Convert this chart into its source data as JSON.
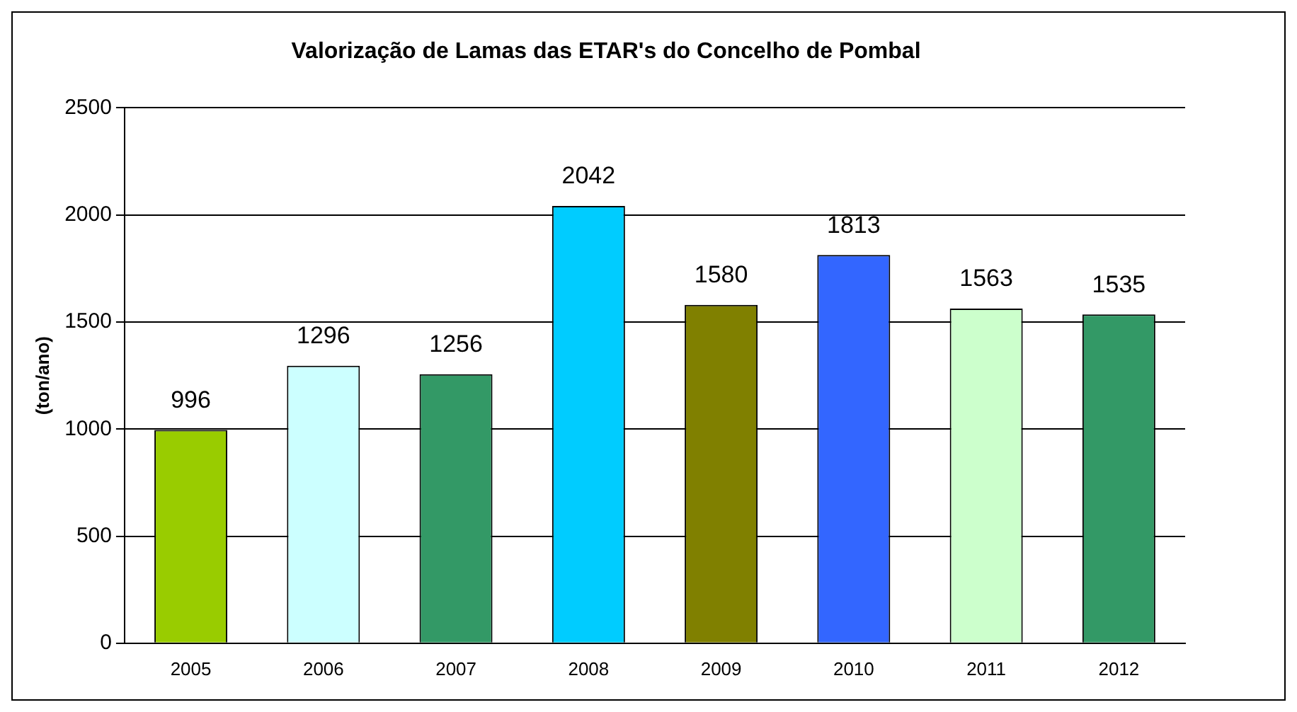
{
  "chart_data": {
    "type": "bar",
    "title": "Valorização de Lamas das ETAR's do Concelho de Pombal",
    "ylabel": "(ton/ano)",
    "categories": [
      "2005",
      "2006",
      "2007",
      "2008",
      "2009",
      "2010",
      "2011",
      "2012"
    ],
    "values": [
      996,
      1296,
      1256,
      2042,
      1580,
      1813,
      1563,
      1535
    ],
    "colors": [
      "#99cc00",
      "#ccffff",
      "#339966",
      "#00ccff",
      "#808000",
      "#3366ff",
      "#ccffcc",
      "#339966"
    ],
    "ylim": [
      0,
      2500
    ],
    "yticks": [
      0,
      500,
      1000,
      1500,
      2000,
      2500
    ],
    "grid": "y",
    "data_labels": true,
    "legend": false
  }
}
